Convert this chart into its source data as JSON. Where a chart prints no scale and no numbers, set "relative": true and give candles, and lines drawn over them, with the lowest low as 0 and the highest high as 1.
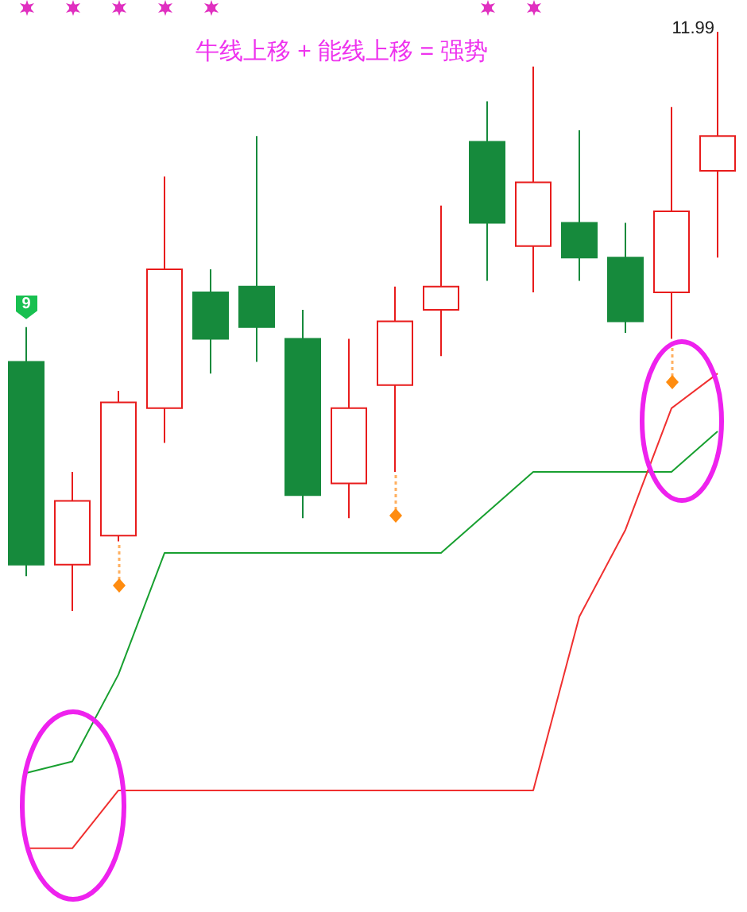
{
  "chart_data": {
    "type": "candlestick",
    "title": "牛线上移 + 能线上移 = 强势",
    "relative": true,
    "categories": [
      null,
      null,
      null,
      null,
      null,
      null,
      null,
      null,
      null,
      null,
      null,
      null,
      null,
      null,
      null,
      null
    ],
    "ohlc": [
      [
        0.43,
        0.49,
        0.06,
        0.08
      ],
      [
        0.08,
        0.24,
        0,
        0.19
      ],
      [
        0.13,
        0.38,
        0.12,
        0.36
      ],
      [
        0.35,
        0.75,
        0.29,
        0.59
      ],
      [
        0.55,
        0.59,
        0.41,
        0.47
      ],
      [
        0.56,
        0.82,
        0.43,
        0.49
      ],
      [
        0.47,
        0.52,
        0.16,
        0.2
      ],
      [
        0.22,
        0.47,
        0.16,
        0.35
      ],
      [
        0.39,
        0.56,
        0.24,
        0.5
      ],
      [
        0.52,
        0.7,
        0.44,
        0.56
      ],
      [
        0.81,
        0.88,
        0.57,
        0.67
      ],
      [
        0.63,
        0.94,
        0.55,
        0.74
      ],
      [
        0.67,
        0.83,
        0.57,
        0.61
      ],
      [
        0.61,
        0.67,
        0.48,
        0.5
      ],
      [
        0.55,
        0.87,
        0.47,
        0.69
      ],
      [
        0.76,
        1,
        0.61,
        0.82
      ]
    ],
    "colors": [
      "#168a3c",
      "#e81c1c",
      "#e81c1c",
      "#e81c1c",
      "#168a3c",
      "#168a3c",
      "#168a3c",
      "#e81c1c",
      "#e81c1c",
      "#e81c1c",
      "#168a3c",
      "#e81c1c",
      "#168a3c",
      "#168a3c",
      "#e81c1c",
      "#e81c1c"
    ],
    "series": [
      {
        "type": "line",
        "color": "#18a030",
        "values": [
          -0.28,
          -0.26,
          -0.11,
          0.1,
          0.1,
          0.1,
          0.1,
          0.1,
          0.1,
          0.1,
          0.17,
          0.24,
          0.24,
          0.24,
          0.24,
          0.31
        ]
      },
      {
        "type": "line",
        "color": "#f03030",
        "values": [
          -0.41,
          -0.41,
          -0.31,
          -0.31,
          -0.31,
          -0.31,
          -0.31,
          -0.31,
          -0.31,
          -0.31,
          -0.31,
          -0.31,
          -0.01,
          0.14,
          0.35,
          0.41
        ]
      }
    ],
    "annotations": [
      "11.99",
      "9"
    ]
  }
}
